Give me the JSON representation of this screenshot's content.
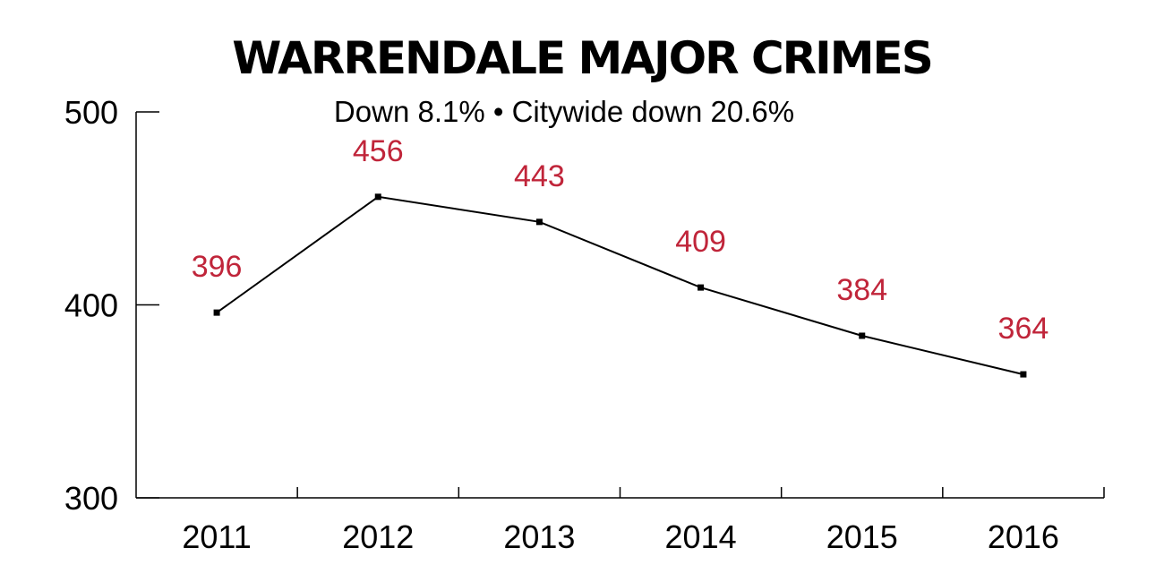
{
  "chart_data": {
    "type": "line",
    "title": "WARRENDALE MAJOR CRIMES",
    "subtitle": "Down 8.1% • Citywide down 20.6%",
    "categories": [
      "2011",
      "2012",
      "2013",
      "2014",
      "2015",
      "2016"
    ],
    "series": [
      {
        "values": [
          396,
          456,
          443,
          409,
          384,
          364
        ]
      }
    ],
    "data_labels": [
      "396",
      "456",
      "443",
      "409",
      "384",
      "364"
    ],
    "yticks": [
      "300",
      "400",
      "500"
    ],
    "ylim": [
      300,
      500
    ],
    "xlabel": "",
    "ylabel": "",
    "grid": false,
    "colors": {
      "line": "#000000",
      "marker": "#000000",
      "label": "#c0253a",
      "text": "#000000"
    }
  }
}
